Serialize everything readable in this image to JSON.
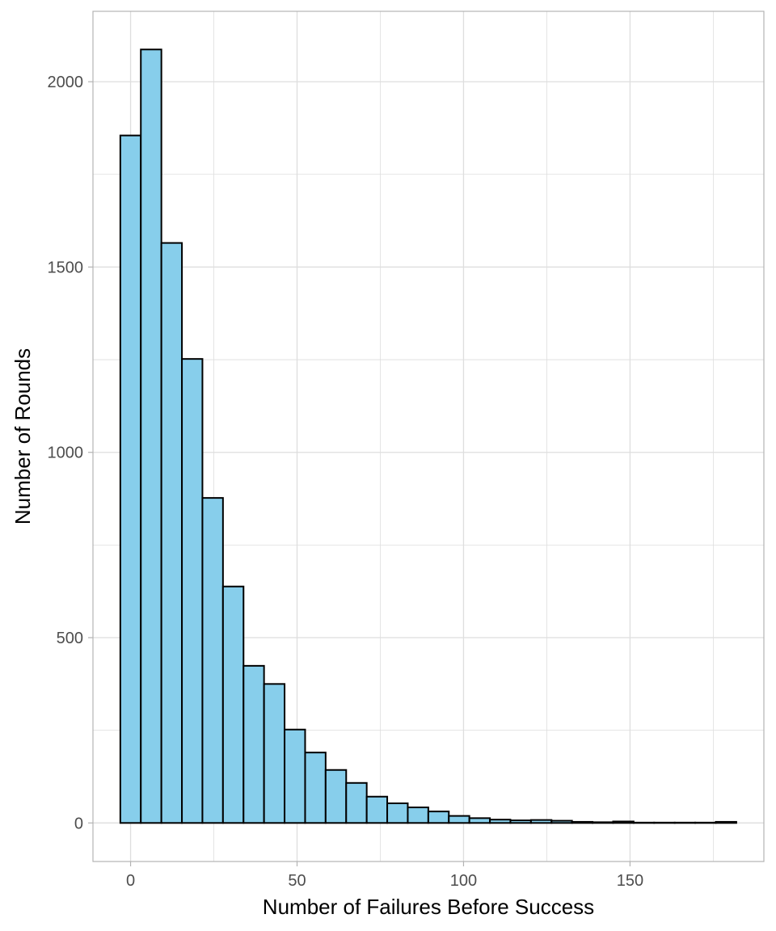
{
  "chart_data": {
    "type": "bar",
    "title": "",
    "xlabel": "Number of Failures Before Success",
    "ylabel": "Number of Rounds",
    "bin_width": 6.167,
    "bins": [
      {
        "x_start": -3.08,
        "x_end": 3.08,
        "count": 1855
      },
      {
        "x_start": 3.08,
        "x_end": 9.25,
        "count": 2087
      },
      {
        "x_start": 9.25,
        "x_end": 15.42,
        "count": 1565
      },
      {
        "x_start": 15.42,
        "x_end": 21.58,
        "count": 1252
      },
      {
        "x_start": 21.58,
        "x_end": 27.75,
        "count": 877
      },
      {
        "x_start": 27.75,
        "x_end": 33.92,
        "count": 638
      },
      {
        "x_start": 33.92,
        "x_end": 40.08,
        "count": 424
      },
      {
        "x_start": 40.08,
        "x_end": 46.25,
        "count": 375
      },
      {
        "x_start": 46.25,
        "x_end": 52.42,
        "count": 252
      },
      {
        "x_start": 52.42,
        "x_end": 58.58,
        "count": 190
      },
      {
        "x_start": 58.58,
        "x_end": 64.75,
        "count": 143
      },
      {
        "x_start": 64.75,
        "x_end": 70.92,
        "count": 108
      },
      {
        "x_start": 70.92,
        "x_end": 77.08,
        "count": 71
      },
      {
        "x_start": 77.08,
        "x_end": 83.25,
        "count": 53
      },
      {
        "x_start": 83.25,
        "x_end": 89.42,
        "count": 42
      },
      {
        "x_start": 89.42,
        "x_end": 95.58,
        "count": 31
      },
      {
        "x_start": 95.58,
        "x_end": 101.75,
        "count": 19
      },
      {
        "x_start": 101.75,
        "x_end": 107.92,
        "count": 13
      },
      {
        "x_start": 107.92,
        "x_end": 114.08,
        "count": 9
      },
      {
        "x_start": 114.08,
        "x_end": 120.25,
        "count": 7
      },
      {
        "x_start": 120.25,
        "x_end": 126.42,
        "count": 8
      },
      {
        "x_start": 126.42,
        "x_end": 132.58,
        "count": 6
      },
      {
        "x_start": 132.58,
        "x_end": 138.75,
        "count": 3
      },
      {
        "x_start": 138.75,
        "x_end": 144.92,
        "count": 2
      },
      {
        "x_start": 144.92,
        "x_end": 151.08,
        "count": 4
      },
      {
        "x_start": 151.08,
        "x_end": 157.25,
        "count": 1
      },
      {
        "x_start": 157.25,
        "x_end": 163.42,
        "count": 1
      },
      {
        "x_start": 163.42,
        "x_end": 169.58,
        "count": 1
      },
      {
        "x_start": 169.58,
        "x_end": 175.75,
        "count": 1
      },
      {
        "x_start": 175.75,
        "x_end": 181.92,
        "count": 3
      }
    ],
    "xlim": [
      -11.3,
      190.2
    ],
    "ylim": [
      -104,
      2190
    ],
    "x_major_ticks": [
      0,
      50,
      100,
      150
    ],
    "x_minor_ticks": [
      25,
      75,
      125,
      175
    ],
    "y_major_ticks": [
      0,
      500,
      1000,
      1500,
      2000
    ],
    "y_minor_ticks": [
      250,
      750,
      1250,
      1750
    ],
    "grid": true,
    "legend": "none",
    "colors": {
      "bar_fill": "#87CEEB",
      "bar_stroke": "#000000",
      "grid": "#dedede",
      "panel_border": "#b3b3b3",
      "tick_text": "#4d4d4d",
      "axis_title_text": "#000000"
    }
  }
}
